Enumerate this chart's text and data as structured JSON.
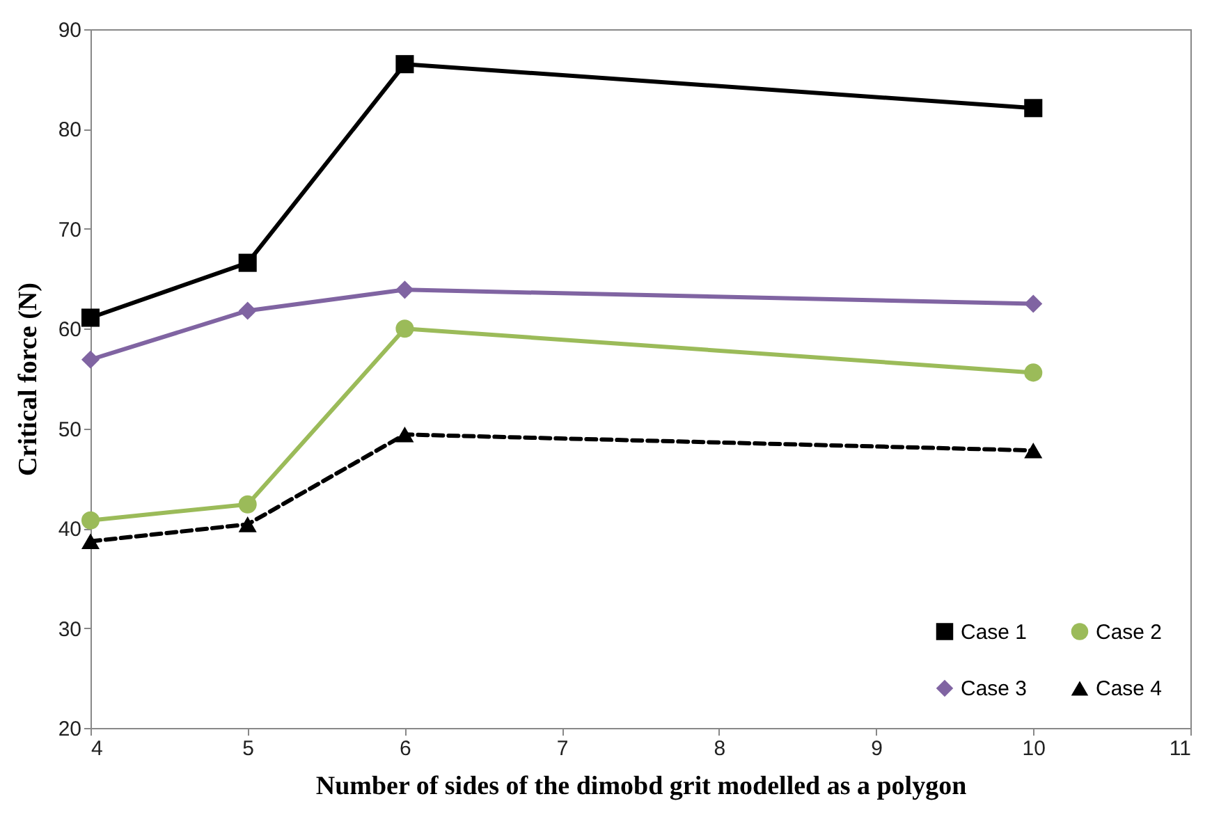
{
  "chart_data": {
    "type": "line",
    "xlabel": "Number of sides of the dimobd grit modelled as a polygon",
    "ylabel": "Critical force (N)",
    "x": [
      4,
      5,
      6,
      10
    ],
    "series": [
      {
        "name": "Case 1",
        "color": "#000000",
        "marker": "square",
        "line_style": "solid",
        "values": [
          61.1,
          66.6,
          86.5,
          82.1
        ]
      },
      {
        "name": "Case 2",
        "color": "#9bbb59",
        "marker": "circle",
        "line_style": "solid",
        "values": [
          40.8,
          42.4,
          60.0,
          55.6
        ]
      },
      {
        "name": "Case 3",
        "color": "#8064a2",
        "marker": "diamond",
        "line_style": "solid",
        "values": [
          56.9,
          61.8,
          63.9,
          62.5
        ]
      },
      {
        "name": "Case 4",
        "color": "#000000",
        "marker": "triangle",
        "line_style": "dashed",
        "values": [
          38.7,
          40.4,
          49.4,
          47.8
        ]
      }
    ],
    "xlim": [
      4,
      11
    ],
    "xticks": [
      4,
      5,
      6,
      7,
      8,
      9,
      10,
      11
    ],
    "ylim": [
      20,
      90
    ],
    "yticks": [
      20,
      30,
      40,
      50,
      60,
      70,
      80,
      90
    ],
    "grid": false,
    "legend": "bottom right"
  }
}
